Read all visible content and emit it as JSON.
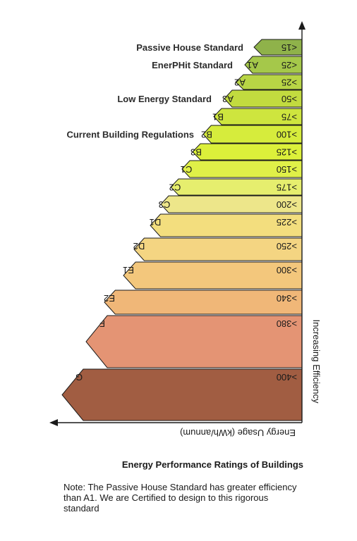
{
  "bands": [
    {
      "value": "<15",
      "grade": "",
      "color": "#8fb24a"
    },
    {
      "value": "<25",
      "grade": "A1",
      "color": "#a5c84a"
    },
    {
      "value": ">25",
      "grade": "A2",
      "color": "#b8d545"
    },
    {
      "value": ">50",
      "grade": "A3",
      "color": "#c2db3f"
    },
    {
      "value": ">75",
      "grade": "B1",
      "color": "#cee53e"
    },
    {
      "value": ">100",
      "grade": "B2",
      "color": "#d6ec3c"
    },
    {
      "value": ">125",
      "grade": "B3",
      "color": "#dcf03a"
    },
    {
      "value": ">150",
      "grade": "C1",
      "color": "#e0f048"
    },
    {
      "value": ">175",
      "grade": "C2",
      "color": "#e6ee6e"
    },
    {
      "value": ">200",
      "grade": "C3",
      "color": "#ede68a"
    },
    {
      "value": ">225",
      "grade": "D1",
      "color": "#f3de7e"
    },
    {
      "value": ">250",
      "grade": "D2",
      "color": "#f4d582"
    },
    {
      "value": ">300",
      "grade": "E1",
      "color": "#f3c77c"
    },
    {
      "value": ">340",
      "grade": "E2",
      "color": "#f0b778"
    },
    {
      "value": ">380",
      "grade": "F",
      "color": "#e49474"
    },
    {
      "value": ">400",
      "grade": "G",
      "color": "#a15d42"
    }
  ],
  "standards": [
    {
      "label": "Passive House Standard",
      "band": 0
    },
    {
      "label": "EnerPHit Standard",
      "band": 1
    },
    {
      "label": "Low Energy Standard",
      "band": 3
    },
    {
      "label": "Current Building Regulations",
      "band": 5
    }
  ],
  "axis": {
    "x_label": "Energy Usage (kWh/annum)",
    "y_label": "Increasing Efficiency"
  },
  "caption": {
    "title": "Energy Performance Ratings of Buildings",
    "note": "Note: The Passive House Standard has greater efficiency than A1. We are Certified to design to this rigorous standard"
  }
}
